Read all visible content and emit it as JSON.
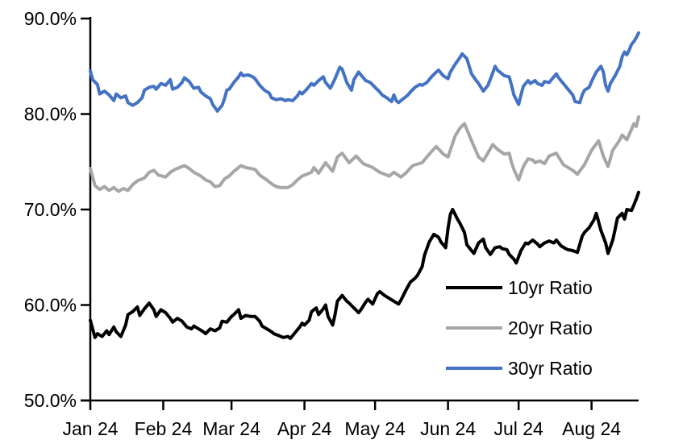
{
  "chart_data": {
    "type": "line",
    "title": "",
    "xlabel": "",
    "ylabel": "",
    "grid": false,
    "legend_position": "inside-lower-right",
    "x_axis": {
      "unit": "month",
      "tick_labels": [
        "Jan 24",
        "Feb 24",
        "Mar 24",
        "Apr 24",
        "May 24",
        "Jun 24",
        "Jul 24",
        "Aug 24"
      ],
      "tick_days": [
        0,
        31,
        60,
        91,
        121,
        152,
        182,
        213
      ],
      "domain_days": [
        0,
        233
      ]
    },
    "y_axis": {
      "unit": "%",
      "tick_labels": [
        "50.0%",
        "60.0%",
        "70.0%",
        "80.0%",
        "90.0%"
      ],
      "tick_values": [
        50,
        60,
        70,
        80,
        90
      ],
      "range": [
        50,
        90
      ]
    },
    "series": [
      {
        "name": "10yr Ratio",
        "color": "#000000",
        "d": [
          0,
          2,
          3,
          5,
          7,
          8,
          10,
          11,
          13,
          15,
          16,
          18,
          20,
          21,
          23,
          25,
          27,
          28,
          30,
          32,
          34,
          35,
          37,
          39,
          41,
          43,
          44,
          46,
          48,
          49,
          51,
          53,
          55,
          56,
          58,
          60,
          61,
          63,
          64,
          66,
          68,
          70,
          72,
          73,
          75,
          77,
          78,
          80,
          82,
          84,
          85,
          87,
          89,
          90,
          91,
          93,
          94,
          96,
          97,
          99,
          100,
          101,
          103,
          104,
          105,
          107,
          109,
          110,
          112,
          114,
          115,
          117,
          118,
          120,
          122,
          123,
          125,
          127,
          129,
          131,
          132,
          134,
          136,
          138,
          139,
          141,
          142,
          144,
          146,
          148,
          149,
          151,
          152,
          153,
          154,
          156,
          157,
          159,
          160,
          162,
          163,
          165,
          167,
          168,
          170,
          172,
          174,
          175,
          177,
          178,
          180,
          181,
          183,
          185,
          186,
          188,
          190,
          191,
          193,
          195,
          197,
          198,
          200,
          202,
          203,
          205,
          207,
          209,
          210,
          212,
          214,
          215,
          217,
          219,
          220,
          222,
          223,
          224,
          226,
          227,
          228,
          230,
          231,
          232,
          233
        ],
        "v": [
          58.4,
          56.6,
          57.0,
          56.7,
          57.3,
          56.9,
          57.7,
          57.2,
          56.7,
          57.9,
          59.0,
          59.3,
          59.8,
          58.9,
          59.6,
          60.2,
          59.5,
          58.8,
          59.5,
          59.2,
          58.6,
          58.2,
          58.6,
          58.3,
          57.7,
          57.5,
          57.8,
          57.5,
          57.2,
          57.0,
          57.5,
          57.3,
          57.6,
          58.3,
          58.2,
          58.8,
          59.0,
          59.5,
          58.6,
          58.9,
          58.8,
          58.8,
          58.3,
          57.8,
          57.5,
          57.2,
          57.0,
          56.8,
          56.6,
          56.7,
          56.5,
          57.1,
          57.7,
          58.1,
          57.9,
          58.4,
          59.3,
          59.7,
          59.0,
          59.6,
          60.0,
          58.8,
          57.9,
          59.0,
          60.4,
          61.0,
          60.4,
          60.2,
          59.7,
          59.2,
          59.5,
          60.3,
          60.6,
          60.1,
          61.2,
          61.4,
          61.0,
          60.7,
          60.4,
          60.1,
          60.5,
          61.5,
          62.4,
          62.8,
          63.1,
          64.0,
          65.2,
          66.6,
          67.4,
          67.1,
          66.6,
          66.0,
          68.0,
          69.5,
          70.0,
          69.0,
          68.6,
          67.6,
          66.3,
          65.7,
          65.4,
          66.5,
          66.9,
          66.0,
          65.3,
          66.0,
          66.1,
          65.9,
          65.8,
          65.3,
          64.8,
          64.4,
          65.7,
          66.5,
          66.4,
          66.8,
          66.4,
          66.1,
          66.5,
          66.7,
          66.5,
          66.8,
          66.2,
          65.9,
          65.8,
          65.7,
          65.5,
          67.2,
          67.6,
          68.1,
          68.9,
          69.6,
          67.8,
          66.5,
          65.4,
          66.8,
          67.9,
          69.1,
          69.6,
          69.0,
          70.0,
          69.9,
          70.5,
          71.1,
          71.8
        ]
      },
      {
        "name": "20yr Ratio",
        "color": "#A6A6A6",
        "d": [
          0,
          2,
          4,
          6,
          8,
          10,
          12,
          14,
          16,
          18,
          20,
          23,
          25,
          27,
          29,
          32,
          34,
          36,
          38,
          40,
          42,
          44,
          47,
          49,
          51,
          53,
          55,
          57,
          59,
          61,
          63,
          64,
          66,
          68,
          70,
          72,
          75,
          77,
          79,
          81,
          84,
          86,
          88,
          90,
          92,
          94,
          95,
          97,
          100,
          103,
          105,
          107,
          110,
          113,
          116,
          118,
          120,
          123,
          125,
          127,
          129,
          132,
          134,
          137,
          141,
          144,
          147,
          150,
          152,
          155,
          157,
          159,
          162,
          165,
          167,
          171,
          173,
          176,
          178,
          179,
          180,
          182,
          184,
          186,
          188,
          189,
          191,
          193,
          195,
          198,
          201,
          205,
          207,
          210,
          213,
          216,
          218,
          220,
          222,
          225,
          226,
          228,
          230,
          231,
          232,
          233
        ],
        "v": [
          74.3,
          72.5,
          72.1,
          72.4,
          72.0,
          72.3,
          71.9,
          72.2,
          72.0,
          72.6,
          73.0,
          73.3,
          73.9,
          74.1,
          73.6,
          73.4,
          73.9,
          74.2,
          74.4,
          74.6,
          74.3,
          73.9,
          73.5,
          73.1,
          72.9,
          72.4,
          72.5,
          73.2,
          73.5,
          74.0,
          74.4,
          74.6,
          74.4,
          74.3,
          74.2,
          73.6,
          73.1,
          72.7,
          72.4,
          72.3,
          72.3,
          72.6,
          73.1,
          73.5,
          73.7,
          73.9,
          74.4,
          73.8,
          74.9,
          74.0,
          75.5,
          75.9,
          74.9,
          75.6,
          74.8,
          74.6,
          74.4,
          73.9,
          73.7,
          73.5,
          73.9,
          73.4,
          73.8,
          74.6,
          74.9,
          75.8,
          76.6,
          75.8,
          75.5,
          77.7,
          78.5,
          79.0,
          77.2,
          75.5,
          75.1,
          76.8,
          76.3,
          75.8,
          75.9,
          74.9,
          74.2,
          73.1,
          74.5,
          75.3,
          75.2,
          74.9,
          75.1,
          74.8,
          75.6,
          75.9,
          74.7,
          74.1,
          73.7,
          74.7,
          76.2,
          77.2,
          75.6,
          74.5,
          76.2,
          77.3,
          77.8,
          77.3,
          78.4,
          79.0,
          78.7,
          79.7
        ]
      },
      {
        "name": "30yr Ratio",
        "color": "#4472C4",
        "d": [
          0,
          1,
          3,
          4,
          6,
          8,
          10,
          11,
          13,
          15,
          16,
          18,
          20,
          22,
          23,
          25,
          27,
          28,
          30,
          32,
          34,
          35,
          37,
          39,
          40,
          42,
          44,
          46,
          47,
          49,
          51,
          52,
          54,
          56,
          57,
          58,
          59,
          61,
          63,
          64,
          65,
          67,
          69,
          70,
          72,
          74,
          76,
          77,
          79,
          81,
          83,
          84,
          86,
          88,
          89,
          90,
          92,
          94,
          95,
          97,
          99,
          100,
          102,
          104,
          106,
          107,
          109,
          111,
          112,
          114,
          116,
          117,
          119,
          121,
          123,
          124,
          126,
          128,
          129,
          130,
          131,
          133,
          135,
          136,
          138,
          140,
          141,
          143,
          145,
          147,
          148,
          150,
          152,
          153,
          155,
          157,
          158,
          160,
          161,
          162,
          164,
          165,
          167,
          169,
          171,
          172,
          173,
          175,
          176,
          178,
          179,
          180,
          182,
          183,
          184,
          186,
          187,
          189,
          190,
          192,
          193,
          195,
          196,
          198,
          199,
          201,
          203,
          205,
          206,
          208,
          209,
          210,
          212,
          213,
          215,
          217,
          218,
          219,
          220,
          221,
          223,
          224,
          225,
          226,
          227,
          228,
          229,
          230,
          231,
          232,
          233
        ],
        "v": [
          84.5,
          83.6,
          83.1,
          82.1,
          82.4,
          82.0,
          81.4,
          82.1,
          81.7,
          81.9,
          81.2,
          80.9,
          81.2,
          81.7,
          82.5,
          82.8,
          82.9,
          82.6,
          83.2,
          83.0,
          83.6,
          82.6,
          82.8,
          83.3,
          83.8,
          83.4,
          82.7,
          82.8,
          82.3,
          81.9,
          81.6,
          81.0,
          80.3,
          80.9,
          81.6,
          82.5,
          82.6,
          83.3,
          83.9,
          84.3,
          84.0,
          84.1,
          83.9,
          83.7,
          83.0,
          82.5,
          82.2,
          81.7,
          81.5,
          81.6,
          81.4,
          81.5,
          81.4,
          81.9,
          82.3,
          82.1,
          82.6,
          83.2,
          83.0,
          83.5,
          83.9,
          83.3,
          82.7,
          83.7,
          84.9,
          84.7,
          83.3,
          82.5,
          83.6,
          84.4,
          83.8,
          83.5,
          83.3,
          82.8,
          82.3,
          82.0,
          81.7,
          81.3,
          82.0,
          81.4,
          81.2,
          81.6,
          82.0,
          82.3,
          82.8,
          83.1,
          83.0,
          83.3,
          83.9,
          84.4,
          84.6,
          84.0,
          83.7,
          84.4,
          85.2,
          85.9,
          86.3,
          85.8,
          85.0,
          84.2,
          83.5,
          83.2,
          82.4,
          83.0,
          84.3,
          85.0,
          84.6,
          84.2,
          84.0,
          83.9,
          83.0,
          82.0,
          81.0,
          82.0,
          82.9,
          83.5,
          83.2,
          83.5,
          83.2,
          83.0,
          83.4,
          83.3,
          83.6,
          84.2,
          83.8,
          83.2,
          82.6,
          82.0,
          81.3,
          81.2,
          82.0,
          82.5,
          82.8,
          83.4,
          84.4,
          85.0,
          84.4,
          83.0,
          82.4,
          83.2,
          84.0,
          84.5,
          85.0,
          86.0,
          86.5,
          86.2,
          86.7,
          87.3,
          87.6,
          88.0,
          88.5
        ]
      }
    ]
  }
}
